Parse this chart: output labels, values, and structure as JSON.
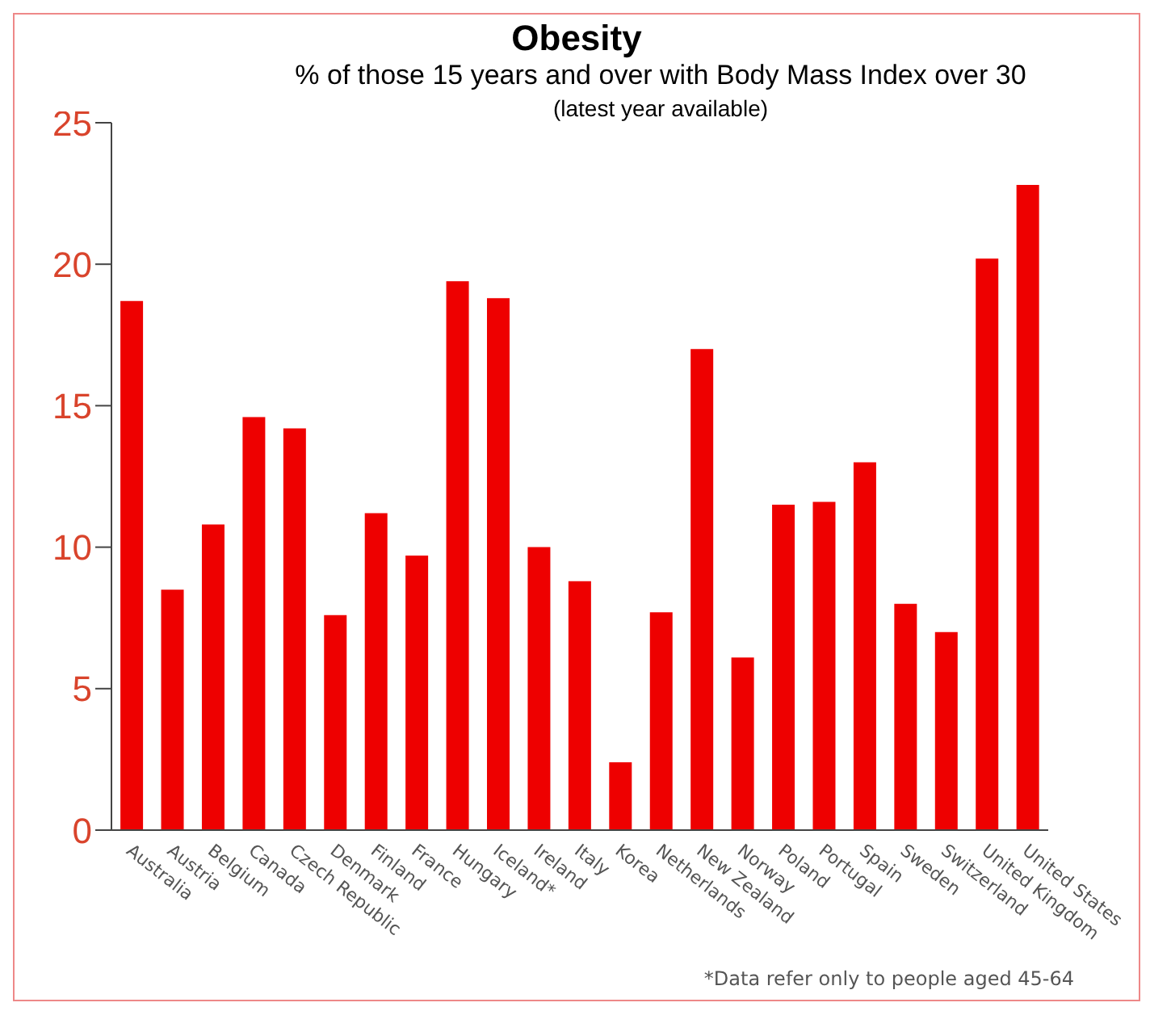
{
  "chart_data": {
    "type": "bar",
    "title": "Obesity",
    "subtitle": "% of those 15 years and over with Body Mass Index over 30",
    "annotations": [
      "(latest year available)",
      "*Data refer only to people aged 45-64"
    ],
    "categories": [
      "Australia",
      "Austria",
      "Belgium",
      "Canada",
      "Czech Republic",
      "Denmark",
      "Finland",
      "France",
      "Hungary",
      "Iceland*",
      "Ireland",
      "Italy",
      "Korea",
      "Netherlands",
      "New Zealand",
      "Norway",
      "Poland",
      "Portugal",
      "Spain",
      "Sweden",
      "Switzerland",
      "United Kingdom",
      "United States"
    ],
    "values": [
      18.7,
      8.5,
      10.8,
      14.6,
      14.2,
      7.6,
      11.2,
      9.7,
      19.4,
      18.8,
      10.0,
      8.8,
      2.4,
      7.7,
      17.0,
      6.1,
      11.5,
      11.6,
      13.0,
      8.0,
      7.0,
      20.2,
      22.8
    ],
    "color": "#ee0000",
    "ylim": [
      0,
      25
    ],
    "yticks": [
      0,
      5,
      10,
      15,
      20,
      25
    ],
    "grid": false
  }
}
